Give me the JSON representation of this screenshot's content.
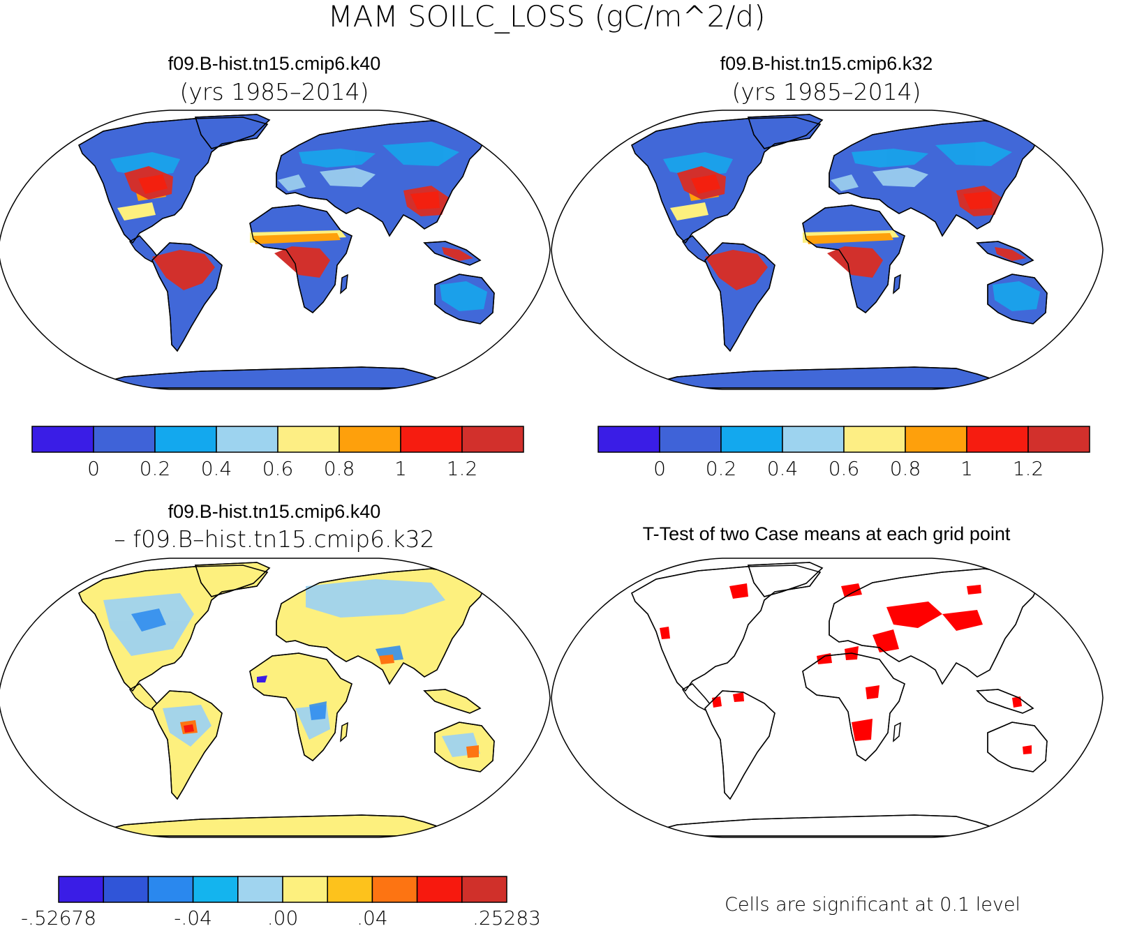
{
  "title": "MAM SOILC_LOSS (gC/m^2/d)",
  "panels": [
    {
      "id": "k40",
      "title": "f09.B-hist.tn15.cmip6.k40",
      "subtitle": "(yrs 1985–2014)"
    },
    {
      "id": "k32",
      "title": "f09.B-hist.tn15.cmip6.k32",
      "subtitle": "(yrs 1985–2014)"
    },
    {
      "id": "diff",
      "title": "f09.B-hist.tn15.cmip6.k40",
      "subtitle": "– f09.B–hist.tn15.cmip6.k32"
    },
    {
      "id": "ttest",
      "title": "T-Test of two Case means at each grid point",
      "subtitle": ""
    }
  ],
  "colorbars": {
    "k40": {
      "colors": [
        "#3a1de6",
        "#3f63d8",
        "#13a8ee",
        "#9dd3ef",
        "#fdee84",
        "#fea00c",
        "#f61c10",
        "#d2302c"
      ],
      "labels": [
        "0",
        "0.2",
        "0.4",
        "0.6",
        "0.8",
        "1",
        "1.2"
      ]
    },
    "k32": {
      "colors": [
        "#3a1de6",
        "#3f63d8",
        "#13a8ee",
        "#9dd3ef",
        "#fdee84",
        "#fea00c",
        "#f61c10",
        "#d2302c"
      ],
      "labels": [
        "0",
        "0.2",
        "0.4",
        "0.6",
        "0.8",
        "1",
        "1.2"
      ]
    },
    "diff": {
      "colors": [
        "#3a1de6",
        "#3055d8",
        "#2a88ee",
        "#14b4ee",
        "#a0d4ef",
        "#fdf07e",
        "#fdc21c",
        "#fd7412",
        "#f7190e",
        "#d0302a"
      ],
      "labels": [
        "-.52678",
        "-.04",
        ".00",
        ".04",
        ".25283"
      ]
    }
  },
  "ttest_note": "Cells are significant at 0.1 level",
  "colors": {
    "land_low": "#4168d8",
    "land_cyan": "#17a6ec",
    "land_light": "#9fd2ef",
    "land_yellow": "#fdf07e",
    "land_orange": "#fea00c",
    "land_red": "#f3200f",
    "land_dark_red": "#d2302c",
    "significant": "#ff0000"
  }
}
